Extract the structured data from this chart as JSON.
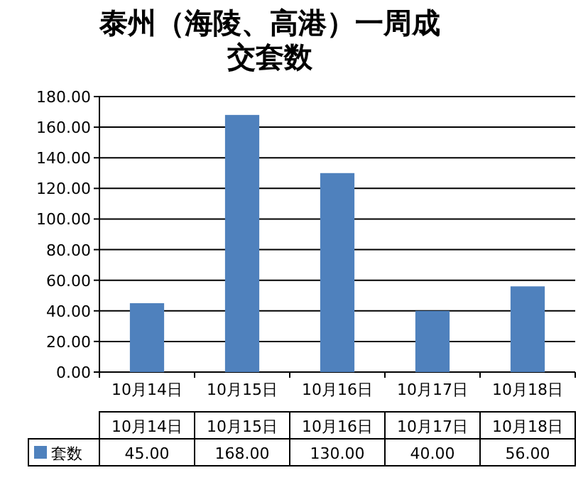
{
  "chart_data": {
    "type": "bar",
    "title": "泰州（海陵、高港）一周成交套数",
    "categories": [
      "10月14日",
      "10月15日",
      "10月16日",
      "10月17日",
      "10月18日"
    ],
    "series": [
      {
        "name": "套数",
        "color": "#4f81bd",
        "values": [
          45,
          168,
          130,
          40,
          56
        ]
      }
    ],
    "ylim": [
      0,
      180
    ],
    "yticks": [
      {
        "value": 0,
        "label": "0.00"
      },
      {
        "value": 20,
        "label": "20.00"
      },
      {
        "value": 40,
        "label": "40.00"
      },
      {
        "value": 60,
        "label": "60.00"
      },
      {
        "value": 80,
        "label": "80.00"
      },
      {
        "value": 100,
        "label": "100.00"
      },
      {
        "value": 120,
        "label": "120.00"
      },
      {
        "value": 140,
        "label": "140.00"
      },
      {
        "value": 160,
        "label": "160.00"
      },
      {
        "value": 180,
        "label": "180.00"
      }
    ],
    "value_labels": [
      "45.00",
      "168.00",
      "130.00",
      "40.00",
      "56.00"
    ],
    "grid": "y",
    "legend": "bottom"
  }
}
